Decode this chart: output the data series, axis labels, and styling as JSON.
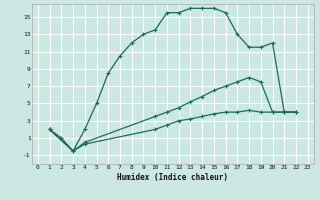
{
  "xlabel": "Humidex (Indice chaleur)",
  "bg_color": "#cce8e2",
  "line_color": "#1a6b5e",
  "grid_color": "#ffffff",
  "xlim": [
    -0.5,
    23.5
  ],
  "ylim": [
    -2.0,
    16.5
  ],
  "xticks": [
    0,
    1,
    2,
    3,
    4,
    5,
    6,
    7,
    8,
    9,
    10,
    11,
    12,
    13,
    14,
    15,
    16,
    17,
    18,
    19,
    20,
    21,
    22,
    23
  ],
  "yticks": [
    -1,
    1,
    3,
    5,
    7,
    9,
    11,
    13,
    15
  ],
  "line1_x": [
    1,
    2,
    3,
    4,
    5,
    6,
    7,
    8,
    9,
    10,
    11,
    12,
    13,
    14,
    15,
    16,
    17,
    18,
    19,
    20,
    21,
    22
  ],
  "line1_y": [
    2,
    1,
    -0.5,
    2,
    5,
    8.5,
    10.5,
    12,
    13,
    13.5,
    15.5,
    15.5,
    16,
    16,
    16,
    15.5,
    13,
    11.5,
    11.5,
    12,
    4,
    4
  ],
  "line2_x": [
    1,
    3,
    4,
    10,
    11,
    12,
    13,
    14,
    15,
    16,
    17,
    18,
    19,
    20,
    21,
    22
  ],
  "line2_y": [
    2,
    -0.5,
    0.5,
    3.5,
    4,
    4.5,
    5.2,
    5.8,
    6.5,
    7,
    7.5,
    8,
    7.5,
    4,
    4,
    4
  ],
  "line3_x": [
    1,
    3,
    4,
    10,
    11,
    12,
    13,
    14,
    15,
    16,
    17,
    18,
    19,
    20,
    21,
    22
  ],
  "line3_y": [
    2,
    -0.5,
    0.3,
    2,
    2.5,
    3,
    3.2,
    3.5,
    3.8,
    4,
    4,
    4.2,
    4,
    4,
    4,
    4
  ]
}
